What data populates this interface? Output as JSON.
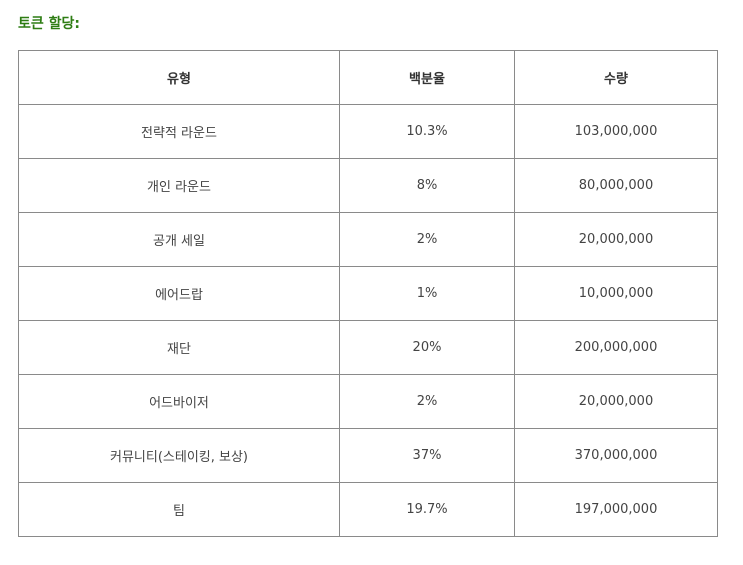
{
  "heading": "토큰 할당:",
  "colors": {
    "heading": "#2e7d14",
    "border": "#8a8a8a",
    "text": "#444444"
  },
  "table": {
    "headers": [
      "유형",
      "백분율",
      "수량"
    ],
    "rows": [
      [
        "전략적 라운드",
        "10.3%",
        "103,000,000"
      ],
      [
        "개인 라운드",
        "8%",
        "80,000,000"
      ],
      [
        "공개 세일",
        "2%",
        "20,000,000"
      ],
      [
        "에어드랍",
        "1%",
        "10,000,000"
      ],
      [
        "재단",
        "20%",
        "200,000,000"
      ],
      [
        "어드바이저",
        "2%",
        "20,000,000"
      ],
      [
        "커뮤니티(스테이킹, 보상)",
        "37%",
        "370,000,000"
      ],
      [
        "팀",
        "19.7%",
        "197,000,000"
      ]
    ]
  }
}
